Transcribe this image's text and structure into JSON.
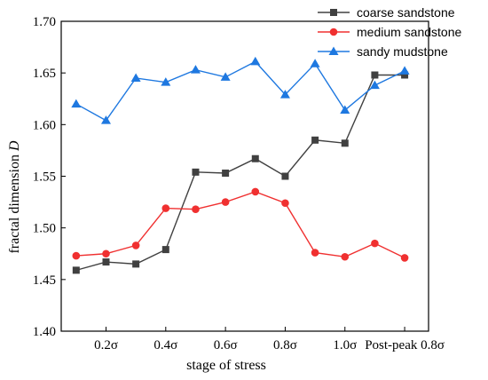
{
  "chart_data": {
    "type": "line",
    "xlabel": "stage of stress",
    "ylabel": "fractal dimension D",
    "ylabel_main": "fractal dimension ",
    "ylabel_var": "D",
    "ylim": [
      1.4,
      1.7
    ],
    "yticks": [
      "1.40",
      "1.45",
      "1.50",
      "1.55",
      "1.60",
      "1.65",
      "1.70"
    ],
    "xticks": [
      "0.2σ",
      "0.4σ",
      "0.6σ",
      "0.8σ",
      "1.0σ",
      "Post-peak 0.8σ"
    ],
    "x": [
      0.1,
      0.2,
      0.3,
      0.4,
      0.5,
      0.6,
      0.7,
      0.8,
      0.9,
      1.0,
      1.1,
      1.2
    ],
    "xlim": [
      0.05,
      1.28
    ],
    "grid": false,
    "legend_position": "top-right",
    "series": [
      {
        "name": "coarse sandstone",
        "color": "#404040",
        "marker": "square",
        "values": [
          1.459,
          1.467,
          1.465,
          1.479,
          1.554,
          1.553,
          1.567,
          1.55,
          1.585,
          1.582,
          1.648,
          1.648
        ]
      },
      {
        "name": "medium sandstone",
        "color": "#f03030",
        "marker": "circle",
        "values": [
          1.473,
          1.475,
          1.483,
          1.519,
          1.518,
          1.525,
          1.535,
          1.524,
          1.476,
          1.472,
          1.485,
          1.471
        ]
      },
      {
        "name": "sandy mudstone",
        "color": "#1e78e0",
        "marker": "triangle",
        "values": [
          1.62,
          1.604,
          1.645,
          1.641,
          1.653,
          1.646,
          1.661,
          1.629,
          1.659,
          1.614,
          1.638,
          1.652
        ]
      }
    ]
  }
}
